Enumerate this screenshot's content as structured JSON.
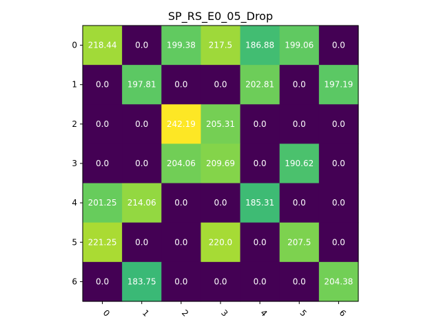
{
  "chart_data": {
    "type": "heatmap",
    "title": "SP_RS_E0_05_Drop",
    "xlabel": "",
    "ylabel": "",
    "x_tick_labels": [
      "0",
      "1",
      "2",
      "3",
      "4",
      "5",
      "6"
    ],
    "y_tick_labels": [
      "0",
      "1",
      "2",
      "3",
      "4",
      "5",
      "6"
    ],
    "values": [
      [
        218.44,
        0.0,
        199.38,
        217.5,
        186.88,
        199.06,
        0.0
      ],
      [
        0.0,
        197.81,
        0.0,
        0.0,
        202.81,
        0.0,
        197.19
      ],
      [
        0.0,
        0.0,
        242.19,
        205.31,
        0.0,
        0.0,
        0.0
      ],
      [
        0.0,
        0.0,
        204.06,
        209.69,
        0.0,
        190.62,
        0.0
      ],
      [
        201.25,
        214.06,
        0.0,
        0.0,
        185.31,
        0.0,
        0.0
      ],
      [
        221.25,
        0.0,
        0.0,
        220.0,
        0.0,
        207.5,
        0.0
      ],
      [
        0.0,
        183.75,
        0.0,
        0.0,
        0.0,
        0.0,
        204.38
      ]
    ],
    "cell_labels": [
      [
        "218.44",
        "0.0",
        "199.38",
        "217.5",
        "186.88",
        "199.06",
        "0.0"
      ],
      [
        "0.0",
        "197.81",
        "0.0",
        "0.0",
        "202.81",
        "0.0",
        "197.19"
      ],
      [
        "0.0",
        "0.0",
        "242.19",
        "205.31",
        "0.0",
        "0.0",
        "0.0"
      ],
      [
        "0.0",
        "0.0",
        "204.06",
        "209.69",
        "0.0",
        "190.62",
        "0.0"
      ],
      [
        "201.25",
        "214.06",
        "0.0",
        "0.0",
        "185.31",
        "0.0",
        "0.0"
      ],
      [
        "221.25",
        "0.0",
        "0.0",
        "220.0",
        "0.0",
        "207.5",
        "0.0"
      ],
      [
        "0.0",
        "183.75",
        "0.0",
        "0.0",
        "0.0",
        "0.0",
        "204.38"
      ]
    ],
    "colormap": "viridis",
    "value_range": [
      0.0,
      242.19
    ],
    "grid": false,
    "x_tick_rotation": "45-degree"
  }
}
